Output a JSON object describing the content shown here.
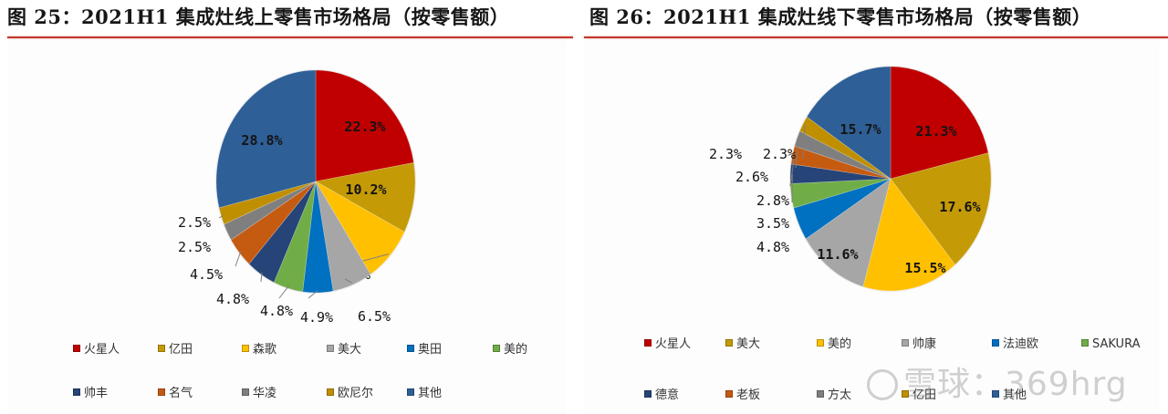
{
  "left_figure": {
    "title": "图 25：2021H1 集成灶线上零售市场格局（按零售额）"
  },
  "right_figure": {
    "title": "图 26：2021H1 集成灶线下零售市场格局（按零售额）"
  },
  "watermark": {
    "text": "雪球：369hrg",
    "logo": "snowball-logo"
  },
  "chart_data": [
    {
      "type": "pie",
      "title": "2021H1 集成灶线上零售市场格局（按零售额）",
      "start_angle": "12 o'clock, clockwise",
      "categories": [
        "火星人",
        "亿田",
        "森歌",
        "美大",
        "奥田",
        "美的",
        "帅丰",
        "名气",
        "华凌",
        "欧尼尔",
        "其他"
      ],
      "values": [
        22.3,
        10.2,
        8.2,
        6.5,
        4.9,
        4.8,
        4.8,
        4.5,
        2.5,
        2.5,
        28.8
      ],
      "labels": [
        "22.3%",
        "10.2%",
        "8.2%",
        "6.5%",
        "4.9%",
        "4.8%",
        "4.8%",
        "4.5%",
        "2.5%",
        "2.5%",
        "28.8%"
      ],
      "colors": [
        "#c00000",
        "#c49a06",
        "#ffc000",
        "#a6a6a6",
        "#0070c0",
        "#70ad47",
        "#264478",
        "#c55a11",
        "#7f7f7f",
        "#bf8f00",
        "#2e5f96"
      ],
      "legend_position": "bottom",
      "legend_rows": [
        [
          "火星人",
          "亿田",
          "森歌",
          "美大",
          "奥田",
          "美的"
        ],
        [
          "帅丰",
          "名气",
          "华凌",
          "欧尼尔",
          "其他"
        ]
      ]
    },
    {
      "type": "pie",
      "title": "2021H1 集成灶线下零售市场格局（按零售额）",
      "start_angle": "12 o'clock, clockwise",
      "categories": [
        "火星人",
        "美大",
        "美的",
        "帅康",
        "法迪欧",
        "SAKURA",
        "德意",
        "老板",
        "方太",
        "亿田",
        "其他"
      ],
      "values": [
        21.3,
        17.6,
        15.5,
        11.6,
        4.8,
        3.5,
        2.8,
        2.6,
        2.3,
        2.3,
        15.7
      ],
      "labels": [
        "21.3%",
        "17.6%",
        "15.5%",
        "11.6%",
        "4.8%",
        "3.5%",
        "2.8%",
        "2.6%",
        "2.3%",
        "2.3%",
        "15.7%"
      ],
      "colors": [
        "#c00000",
        "#c49a06",
        "#ffc000",
        "#a6a6a6",
        "#0070c0",
        "#70ad47",
        "#264478",
        "#c55a11",
        "#7f7f7f",
        "#bf8f00",
        "#2e5f96"
      ],
      "legend_position": "bottom",
      "legend_rows": [
        [
          "火星人",
          "美大",
          "美的",
          "帅康",
          "法迪欧",
          "SAKURA"
        ],
        [
          "德意",
          "老板",
          "方太",
          "亿田",
          "其他"
        ]
      ]
    }
  ]
}
